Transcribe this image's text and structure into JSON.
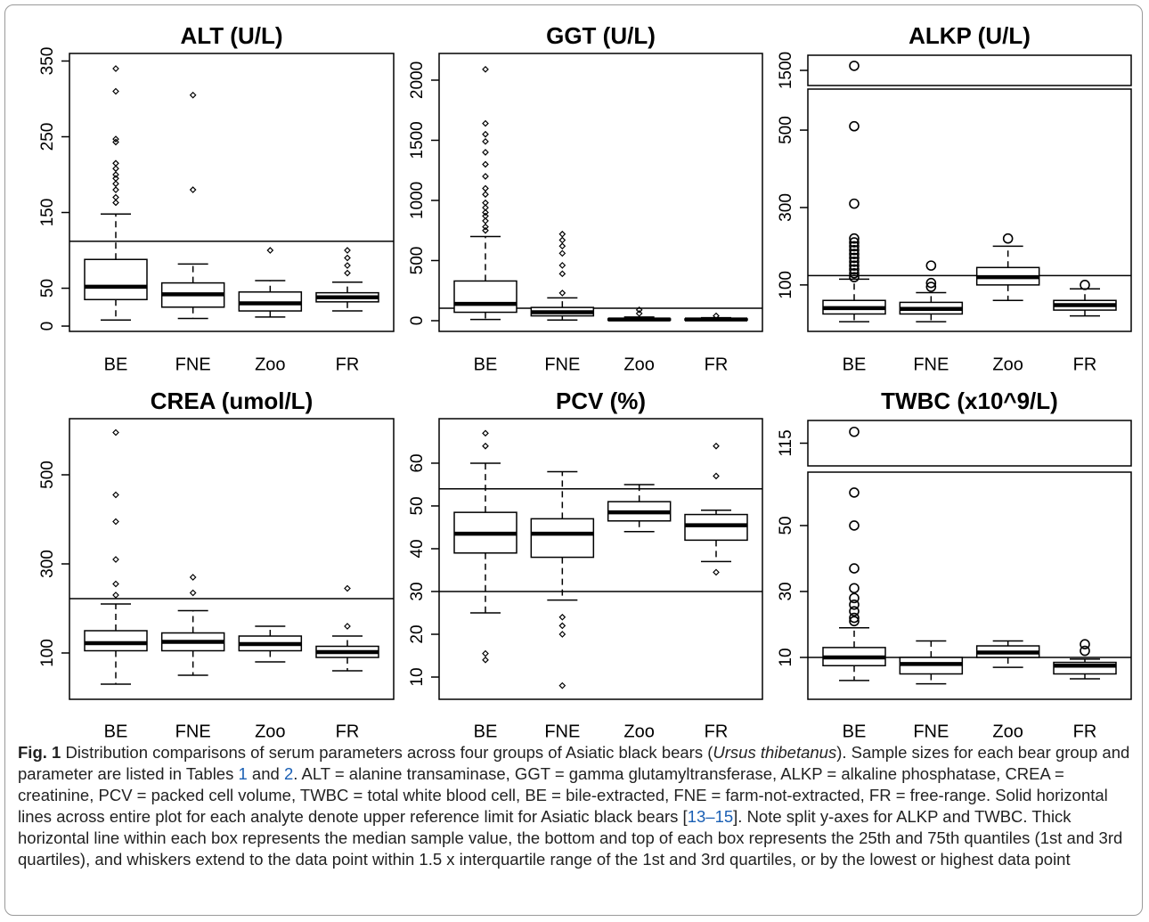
{
  "chart_data": [
    {
      "type": "box",
      "title": "ALT (U/L)",
      "categories": [
        "BE",
        "FNE",
        "Zoo",
        "FR"
      ],
      "ylim": [
        -7,
        360
      ],
      "yticks": [
        0,
        50,
        150,
        250,
        350
      ],
      "outlier_marker": "diamond",
      "reference_lines": [
        112
      ],
      "boxes": [
        {
          "whisker_low": 8,
          "q1": 35,
          "median": 52,
          "q3": 88,
          "whisker_high": 148,
          "outliers": [
            340,
            310,
            247,
            243,
            215,
            208,
            200,
            195,
            188,
            180,
            170,
            163
          ]
        },
        {
          "whisker_low": 10,
          "q1": 25,
          "median": 42,
          "q3": 57,
          "whisker_high": 82,
          "outliers": [
            305,
            180
          ]
        },
        {
          "whisker_low": 12,
          "q1": 20,
          "median": 30,
          "q3": 45,
          "whisker_high": 60,
          "outliers": [
            100
          ]
        },
        {
          "whisker_low": 20,
          "q1": 32,
          "median": 38,
          "q3": 44,
          "whisker_high": 58,
          "outliers": [
            100,
            90,
            80,
            70
          ]
        }
      ]
    },
    {
      "type": "box",
      "title": "GGT (U/L)",
      "categories": [
        "BE",
        "FNE",
        "Zoo",
        "FR"
      ],
      "ylim": [
        -89,
        2222
      ],
      "yticks": [
        0,
        500,
        1000,
        1500,
        2000
      ],
      "outlier_marker": "diamond",
      "reference_lines": [
        104
      ],
      "boxes": [
        {
          "whisker_low": 10,
          "q1": 70,
          "median": 140,
          "q3": 330,
          "whisker_high": 700,
          "outliers": [
            2090,
            1640,
            1550,
            1490,
            1400,
            1300,
            1200,
            1100,
            1050,
            980,
            940,
            900,
            870,
            830,
            780,
            750
          ]
        },
        {
          "whisker_low": 5,
          "q1": 40,
          "median": 70,
          "q3": 110,
          "whisker_high": 190,
          "outliers": [
            720,
            670,
            620,
            560,
            460,
            390,
            230
          ]
        },
        {
          "whisker_low": 2,
          "q1": 5,
          "median": 10,
          "q3": 15,
          "whisker_high": 30,
          "outliers": [
            90,
            60
          ]
        },
        {
          "whisker_low": 2,
          "q1": 5,
          "median": 10,
          "q3": 15,
          "whisker_high": 25,
          "outliers": [
            40
          ]
        }
      ]
    },
    {
      "type": "box",
      "title": "ALKP (U/L)",
      "categories": [
        "BE",
        "FNE",
        "Zoo",
        "FR"
      ],
      "ylim": [
        -20,
        606
      ],
      "yticks": [
        100,
        300,
        500
      ],
      "axis_break": {
        "ylim": [
          1400,
          1600
        ],
        "yticks": [
          1500
        ]
      },
      "outlier_marker": "circle",
      "reference_lines": [
        124
      ],
      "boxes": [
        {
          "whisker_low": 5,
          "q1": 25,
          "median": 40,
          "q3": 60,
          "whisker_high": 115,
          "outliers": [
            1530,
            510,
            310,
            220,
            210,
            200,
            190,
            180,
            170,
            160,
            150,
            140,
            130,
            120
          ]
        },
        {
          "whisker_low": 5,
          "q1": 25,
          "median": 38,
          "q3": 55,
          "whisker_high": 80,
          "outliers": [
            150,
            105,
            95
          ]
        },
        {
          "whisker_low": 60,
          "q1": 100,
          "median": 120,
          "q3": 145,
          "whisker_high": 200,
          "outliers": [
            220
          ]
        },
        {
          "whisker_low": 20,
          "q1": 35,
          "median": 48,
          "q3": 60,
          "whisker_high": 90,
          "outliers": [
            100
          ]
        }
      ]
    },
    {
      "type": "box",
      "title": "CREA (umol/L)",
      "categories": [
        "BE",
        "FNE",
        "Zoo",
        "FR"
      ],
      "ylim": [
        -4,
        626
      ],
      "yticks": [
        100,
        300,
        500
      ],
      "outlier_marker": "diamond",
      "reference_lines": [
        222
      ],
      "boxes": [
        {
          "whisker_low": 30,
          "q1": 105,
          "median": 122,
          "q3": 150,
          "whisker_high": 210,
          "outliers": [
            595,
            455,
            395,
            310,
            255,
            230
          ]
        },
        {
          "whisker_low": 50,
          "q1": 105,
          "median": 125,
          "q3": 145,
          "whisker_high": 195,
          "outliers": [
            270,
            235
          ]
        },
        {
          "whisker_low": 80,
          "q1": 105,
          "median": 120,
          "q3": 138,
          "whisker_high": 160,
          "outliers": []
        },
        {
          "whisker_low": 60,
          "q1": 90,
          "median": 102,
          "q3": 115,
          "whisker_high": 138,
          "outliers": [
            245,
            160
          ]
        }
      ]
    },
    {
      "type": "box",
      "title": "PCV (%)",
      "categories": [
        "BE",
        "FNE",
        "Zoo",
        "FR"
      ],
      "ylim": [
        4.8,
        70.4
      ],
      "yticks": [
        10,
        20,
        30,
        40,
        50,
        60
      ],
      "outlier_marker": "diamond",
      "reference_lines": [
        54,
        30
      ],
      "boxes": [
        {
          "whisker_low": 25,
          "q1": 39,
          "median": 43.5,
          "q3": 48.5,
          "whisker_high": 60,
          "outliers": [
            67,
            64,
            15.5,
            14
          ]
        },
        {
          "whisker_low": 28,
          "q1": 38,
          "median": 43.5,
          "q3": 47,
          "whisker_high": 58,
          "outliers": [
            24,
            22,
            20,
            8
          ]
        },
        {
          "whisker_low": 44,
          "q1": 46.5,
          "median": 48.5,
          "q3": 51,
          "whisker_high": 55,
          "outliers": []
        },
        {
          "whisker_low": 37,
          "q1": 42,
          "median": 45.5,
          "q3": 48,
          "whisker_high": 49,
          "outliers": [
            64,
            57,
            34.5
          ]
        }
      ]
    },
    {
      "type": "box",
      "title": "TWBC (x10^9/L)",
      "categories": [
        "BE",
        "FNE",
        "Zoo",
        "FR"
      ],
      "ylim": [
        -2.7,
        66.2
      ],
      "yticks": [
        10,
        30,
        50
      ],
      "axis_break": {
        "ylim": [
          105,
          125
        ],
        "yticks": [
          115
        ]
      },
      "outlier_marker": "circle",
      "reference_lines": [
        10
      ],
      "boxes": [
        {
          "whisker_low": 3,
          "q1": 7.5,
          "median": 10,
          "q3": 13,
          "whisker_high": 19,
          "outliers": [
            120,
            60,
            50,
            37,
            31,
            28,
            26,
            24,
            22,
            21
          ]
        },
        {
          "whisker_low": 2,
          "q1": 5,
          "median": 8,
          "q3": 10,
          "whisker_high": 15,
          "outliers": []
        },
        {
          "whisker_low": 7,
          "q1": 10,
          "median": 11.5,
          "q3": 13.5,
          "whisker_high": 15,
          "outliers": []
        },
        {
          "whisker_low": 3.5,
          "q1": 5,
          "median": 7.5,
          "q3": 8.5,
          "whisker_high": 9.5,
          "outliers": [
            14,
            12
          ]
        }
      ]
    }
  ],
  "caption": {
    "label": "Fig. 1",
    "parts": [
      " Distribution comparisons of serum parameters across four groups of Asiatic black bears (",
      "Ursus thibetanus",
      "). Sample sizes for each bear group and parameter are listed in Tables ",
      "1",
      " and ",
      "2",
      ". ALT = alanine transaminase, GGT = gamma glutamyltransferase, ALKP = alkaline phosphatase, CREA = creatinine, PCV = packed cell volume, TWBC = total white blood cell, BE = bile-extracted, FNE = farm-not-extracted, FR = free-range. Solid horizontal lines across entire plot for each analyte denote upper reference limit for Asiatic black bears [",
      "13–15",
      "]. Note split y-axes for ALKP and TWBC. Thick horizontal line within each box represents the median sample value, the bottom and top of each box represents the 25th and 75th quantiles (1st and 3rd quartiles), and whiskers extend to the data point within 1.5 x interquartile range of the 1st and 3rd quartiles, or by the lowest or highest data point"
    ]
  }
}
